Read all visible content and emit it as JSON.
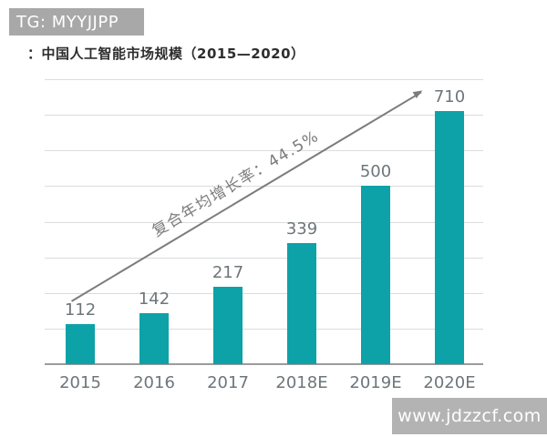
{
  "watermarks": {
    "top_left": "TG: MYYJJPP",
    "bottom_right": "www.jdzzcf.com"
  },
  "title": {
    "prefix": "：",
    "text": "中国人工智能市场规模（2015—2020）"
  },
  "chart_data": {
    "type": "bar",
    "title": "中国人工智能市场规模（2015—2020）",
    "categories": [
      "2015",
      "2016",
      "2017",
      "2018E",
      "2019E",
      "2020E"
    ],
    "values": [
      112,
      142,
      217,
      339,
      500,
      710
    ],
    "xlabel": "",
    "ylabel": "",
    "ylim": [
      0,
      800
    ],
    "gridline_step": 100,
    "grid": true,
    "legend": "none",
    "bar_color": "#0da2a8",
    "annotation": {
      "type": "arrow-up-right",
      "text": "复合年均增长率：44.5%"
    },
    "colors": {
      "grid": "#dcdcdc",
      "baseline": "#9b9b9b",
      "label": "#6d767a",
      "arrow": "#7c7c7c"
    }
  }
}
